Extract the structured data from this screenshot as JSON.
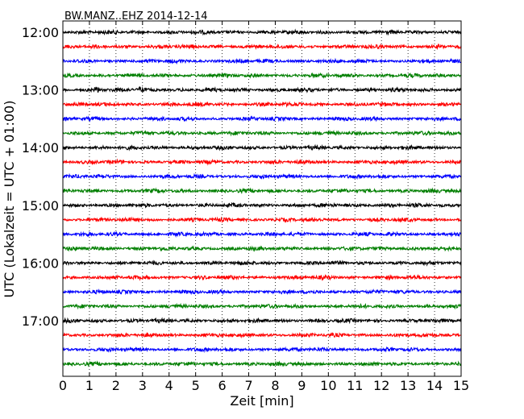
{
  "chart_data": {
    "type": "line",
    "title": "BW.MANZ..EHZ 2014-12-14",
    "xlabel": "Zeit  [min]",
    "ylabel": "UTC (Lokalzeit = UTC + 01:00)",
    "xlim": [
      0,
      15
    ],
    "x_ticks": [
      "0",
      "1",
      "2",
      "3",
      "4",
      "5",
      "6",
      "7",
      "8",
      "9",
      "10",
      "11",
      "12",
      "13",
      "14",
      "15"
    ],
    "y_tick_labels": [
      "12:00",
      "13:00",
      "14:00",
      "15:00",
      "16:00",
      "17:00"
    ],
    "grid": "vertical dotted at each minute",
    "trace_interval_min": 15,
    "trace_colors": [
      "#000000",
      "#ff0000",
      "#0000ff",
      "#007f00"
    ],
    "traces": [
      {
        "start": "12:00"
      },
      {
        "start": "12:15"
      },
      {
        "start": "12:30"
      },
      {
        "start": "12:45"
      },
      {
        "start": "13:00"
      },
      {
        "start": "13:15"
      },
      {
        "start": "13:30"
      },
      {
        "start": "13:45"
      },
      {
        "start": "14:00"
      },
      {
        "start": "14:15"
      },
      {
        "start": "14:30"
      },
      {
        "start": "14:45"
      },
      {
        "start": "15:00"
      },
      {
        "start": "15:15"
      },
      {
        "start": "15:30"
      },
      {
        "start": "15:45"
      },
      {
        "start": "16:00"
      },
      {
        "start": "16:15"
      },
      {
        "start": "16:30"
      },
      {
        "start": "16:45"
      },
      {
        "start": "17:00"
      },
      {
        "start": "17:15"
      },
      {
        "start": "17:30"
      },
      {
        "start": "17:45"
      }
    ],
    "events": [
      {
        "trace": "13:00",
        "x_min": 1.3
      },
      {
        "trace": "13:00",
        "x_min": 2.9
      }
    ]
  }
}
